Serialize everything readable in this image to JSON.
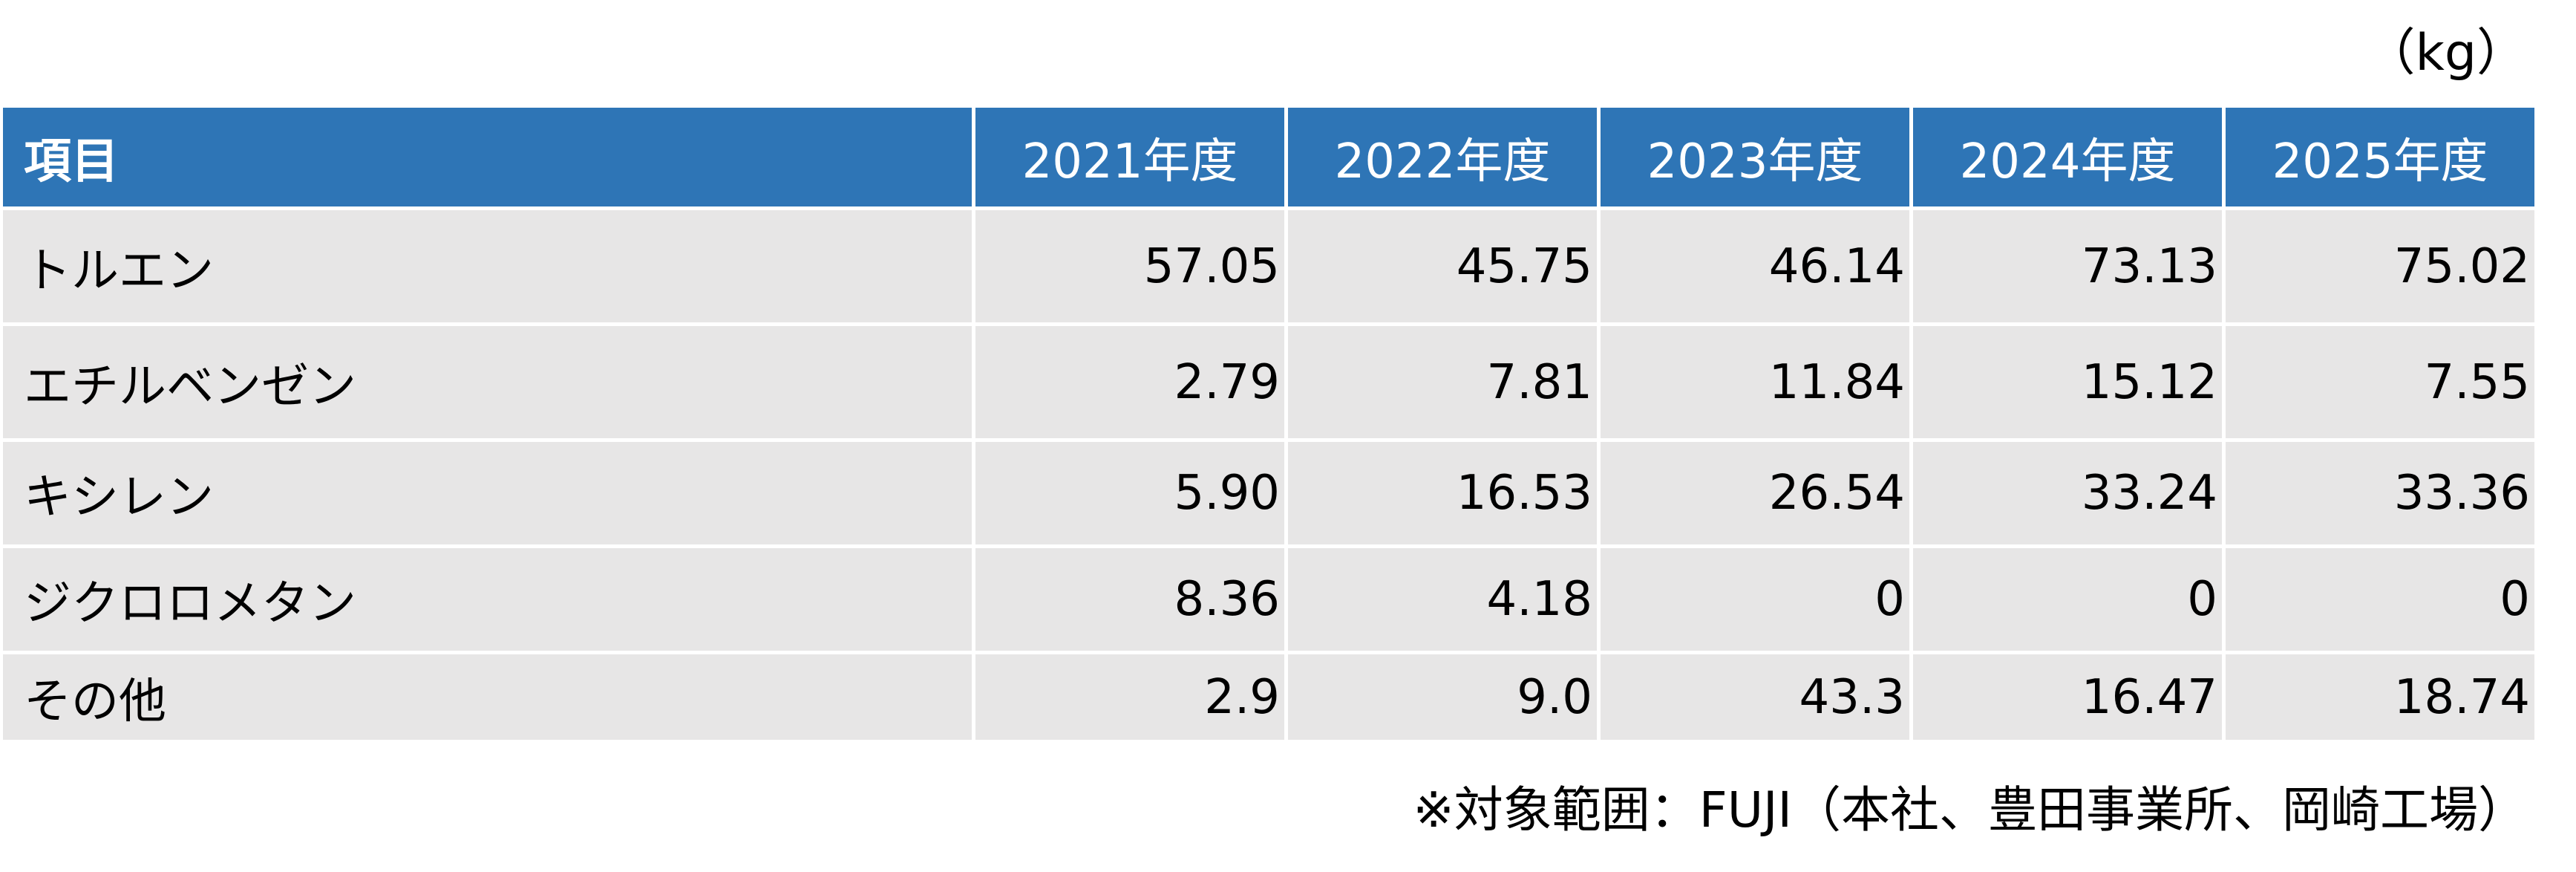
{
  "unit_label": "（kg）",
  "table": {
    "headers": [
      "項目",
      "2021年度",
      "2022年度",
      "2023年度",
      "2024年度",
      "2025年度"
    ],
    "rows": [
      [
        "トルエン",
        "57.05",
        "45.75",
        "46.14",
        "73.13",
        "75.02"
      ],
      [
        "エチルベンゼン",
        "2.79",
        "7.81",
        "11.84",
        "15.12",
        "7.55"
      ],
      [
        "キシレン",
        "5.90",
        "16.53",
        "26.54",
        "33.24",
        "33.36"
      ],
      [
        "ジクロロメタン",
        "8.36",
        "4.18",
        "0",
        "0",
        "0"
      ],
      [
        "その他",
        "2.9",
        "9.0",
        "43.3",
        "16.47",
        "18.74"
      ]
    ],
    "colors": {
      "header_bg": "#2e75b6",
      "header_text": "#ffffff",
      "cell_bg": "#e7e6e6"
    }
  },
  "footnote": "※対象範囲：FUJI（本社、豊田事業所、岡崎工場）"
}
